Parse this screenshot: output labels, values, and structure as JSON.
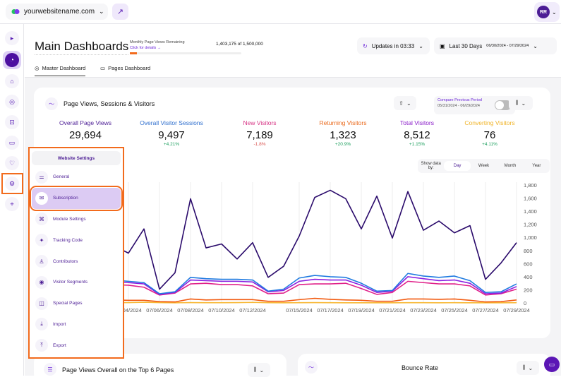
{
  "topbar": {
    "site": "yourwebsitename.com",
    "avatar_initials": "RR"
  },
  "header": {
    "title": "Main Dashboards",
    "quota_label": "Monthly Page Views Remaining",
    "quota_link": "Click for details →",
    "quota_value": "1,403,175 of 1,500,000",
    "quota_used_percent": 6.5,
    "tabs": [
      {
        "label": "Master Dashboard"
      },
      {
        "label": "Pages Dashboard"
      }
    ],
    "updates": "Updates in 03:33",
    "range_label": "Last 30 Days",
    "range_dates": "06/30/2024 - 07/29/2024"
  },
  "card": {
    "title": "Page Views, Sessions & Visitors",
    "compare_label": "Compare Previous Period",
    "compare_dates": "05/31/2024 - 06/29/2024",
    "compare_on": false,
    "metrics": [
      {
        "name": "Overall Page Views",
        "value": "29,694",
        "change": "",
        "color": "#4c1d95"
      },
      {
        "name": "Overall Visitor Sessions",
        "value": "9,497",
        "change": "+4.21%",
        "color": "#2f6fce"
      },
      {
        "name": "New Visitors",
        "value": "7,189",
        "change": "-1.8%",
        "color": "#d63384"
      },
      {
        "name": "Returning Visitors",
        "value": "1,323",
        "change": "+20.9%",
        "color": "#ea6a1d"
      },
      {
        "name": "Total Visitors",
        "value": "8,512",
        "change": "+1.15%",
        "color": "#8b1fc9"
      },
      {
        "name": "Converting Visitors",
        "value": "76",
        "change": "+4.11%",
        "color": "#f0b429"
      }
    ],
    "show_by_label": "Show data by:",
    "show_by": [
      "Day",
      "Week",
      "Month",
      "Year"
    ],
    "show_by_selected": "Day"
  },
  "chart_data": {
    "type": "line",
    "ylim": [
      0,
      1800
    ],
    "yticks": [
      "0",
      "200",
      "400",
      "600",
      "800",
      "1,000",
      "1,200",
      "1,400",
      "1,600",
      "1,800"
    ],
    "x": [
      "07/03/2024",
      "07/04/2024",
      "07/05/2024",
      "07/06/2024",
      "07/07/2024",
      "07/08/2024",
      "07/09/2024",
      "07/10/2024",
      "07/11/2024",
      "07/12/2024",
      "07/13/2024",
      "07/14/2024",
      "07/15/2024",
      "07/16/2024",
      "07/17/2024",
      "07/18/2024",
      "07/19/2024",
      "07/20/2024",
      "07/21/2024",
      "07/22/2024",
      "07/23/2024",
      "07/24/2024",
      "07/25/2024",
      "07/26/2024",
      "07/27/2024",
      "07/28/2024",
      "07/29/2024"
    ],
    "xticks": [
      "07/04/2024",
      "07/06/2024",
      "07/08/2024",
      "07/10/2024",
      "07/12/2024",
      "07/15/2024",
      "07/17/2024",
      "07/19/2024",
      "07/21/2024",
      "07/23/2024",
      "07/25/2024",
      "07/27/2024",
      "07/29/2024"
    ],
    "series": [
      {
        "name": "Overall Page Views",
        "color": "#2a0a6b",
        "values": [
          880,
          760,
          1130,
          210,
          460,
          1590,
          840,
          900,
          670,
          920,
          390,
          560,
          1020,
          1610,
          1720,
          1590,
          1130,
          1630,
          990,
          1700,
          1110,
          1250,
          1070,
          1180,
          360,
          610,
          920
        ]
      },
      {
        "name": "Overall Visitor Sessions",
        "color": "#1f7ae0",
        "values": [
          350,
          330,
          310,
          140,
          170,
          390,
          370,
          360,
          360,
          350,
          180,
          210,
          380,
          420,
          400,
          390,
          300,
          180,
          190,
          450,
          410,
          390,
          410,
          340,
          160,
          170,
          290
        ]
      },
      {
        "name": "Total Visitors",
        "color": "#8b1fe0",
        "values": [
          330,
          310,
          290,
          130,
          160,
          350,
          340,
          330,
          330,
          320,
          170,
          190,
          330,
          360,
          350,
          350,
          270,
          160,
          180,
          400,
          370,
          340,
          350,
          300,
          140,
          150,
          250
        ]
      },
      {
        "name": "New Visitors",
        "color": "#e0218a",
        "values": [
          280,
          270,
          240,
          120,
          150,
          290,
          300,
          280,
          280,
          260,
          140,
          150,
          280,
          290,
          290,
          300,
          220,
          130,
          160,
          330,
          310,
          290,
          290,
          260,
          120,
          140,
          210
        ]
      },
      {
        "name": "Returning Visitors",
        "color": "#f25a0f",
        "values": [
          45,
          40,
          40,
          20,
          15,
          60,
          45,
          50,
          50,
          50,
          25,
          25,
          50,
          70,
          55,
          45,
          40,
          25,
          25,
          60,
          60,
          55,
          60,
          40,
          15,
          20,
          45
        ]
      },
      {
        "name": "Converting Visitors",
        "color": "#f7b733",
        "values": [
          5,
          5,
          10,
          5,
          2,
          5,
          3,
          3,
          5,
          8,
          3,
          2,
          3,
          5,
          3,
          2,
          2,
          2,
          2,
          3,
          3,
          2,
          3,
          2,
          2,
          2,
          3
        ]
      }
    ]
  },
  "settings_menu": {
    "title": "Website Settings",
    "selected": "Subscription",
    "items": [
      {
        "label": "General",
        "icon": "sliders-icon"
      },
      {
        "label": "Subscription",
        "icon": "envelope-icon"
      },
      {
        "label": "Module Settings",
        "icon": "command-icon"
      },
      {
        "label": "Tracking Code",
        "icon": "sparkle-icon"
      },
      {
        "label": "Contributors",
        "icon": "user-icon"
      },
      {
        "label": "Visitor Segments",
        "icon": "user-circle-icon"
      },
      {
        "label": "Special Pages",
        "icon": "pages-icon"
      },
      {
        "label": "Import",
        "icon": "download-icon"
      },
      {
        "label": "Export",
        "icon": "upload-icon"
      }
    ]
  },
  "bottom": {
    "left_title": "Page Views Overall on the Top 6 Pages",
    "right_title": "Bounce Rate"
  },
  "colors": {
    "accent": "#4c1d95",
    "highlight": "#f26b1d"
  }
}
